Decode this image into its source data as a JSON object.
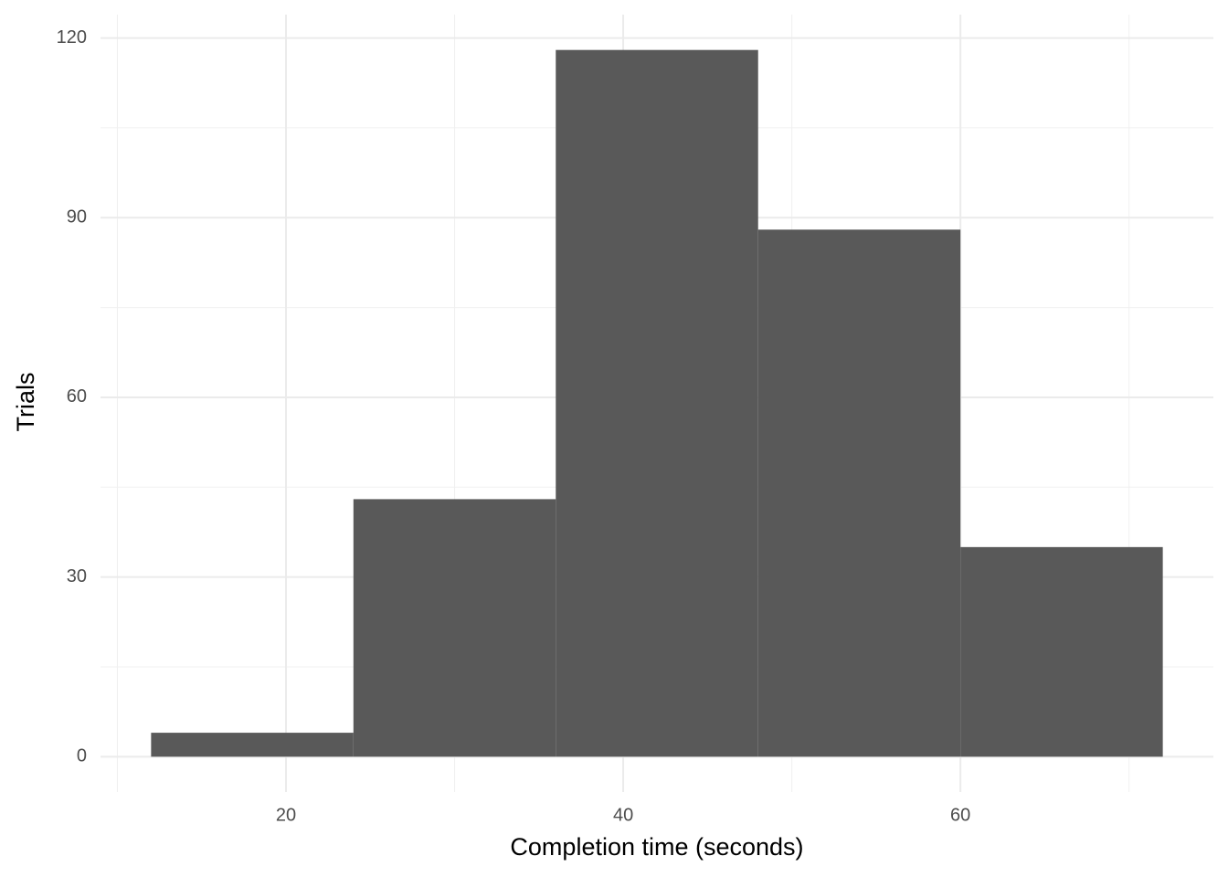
{
  "chart_data": {
    "type": "histogram",
    "x_label": "Completion time (seconds)",
    "y_label": "Trials",
    "bins": [
      12,
      24,
      36,
      48,
      60,
      72
    ],
    "values": [
      4,
      43,
      118,
      88,
      35
    ],
    "color": "#595959",
    "xlim": [
      9,
      75
    ],
    "ylim": [
      -5.9,
      123.9
    ],
    "xticks": [
      20,
      40,
      60
    ],
    "yticks": [
      0,
      30,
      60,
      90,
      120
    ],
    "xminorticks": [
      10,
      30,
      50,
      70
    ],
    "yminorticks": [
      15,
      45,
      75,
      105
    ],
    "grid": true
  }
}
